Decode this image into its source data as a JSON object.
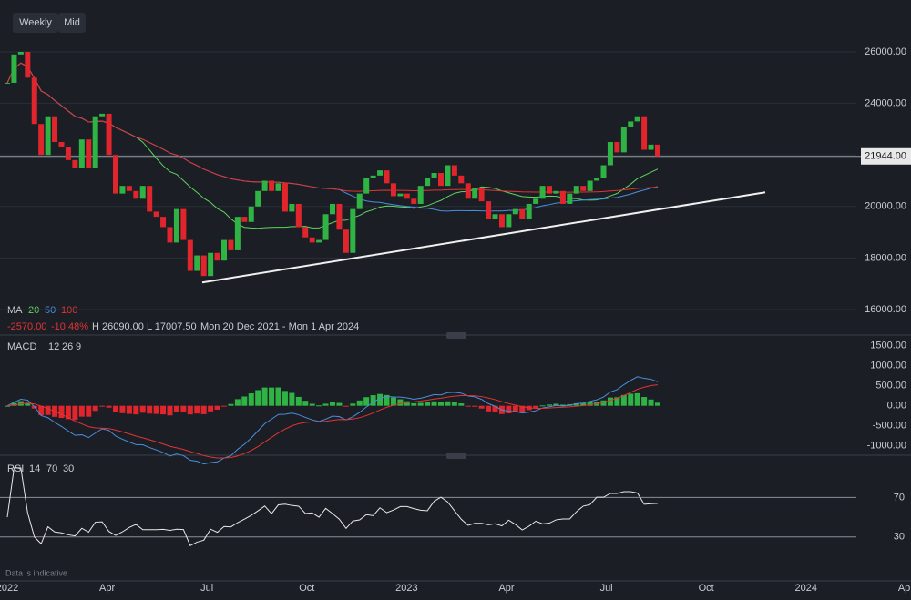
{
  "chart_data": {
    "type": "candlestick",
    "toolbar": [
      "Weekly",
      "Mid"
    ],
    "close": [
      24800,
      25900,
      26000,
      25000,
      23200,
      22000,
      23500,
      22500,
      22300,
      21800,
      21500,
      22600,
      21500,
      23500,
      23600,
      22000,
      20500,
      20800,
      20600,
      20300,
      20800,
      19800,
      19600,
      19200,
      18600,
      19900,
      18700,
      17500,
      18100,
      17300,
      18200,
      17900,
      18700,
      18300,
      19600,
      19400,
      20000,
      20600,
      21000,
      20600,
      20900,
      19800,
      20100,
      19200,
      18800,
      18600,
      18700,
      19700,
      20100,
      19100,
      18200,
      19900,
      20500,
      21100,
      21200,
      21400,
      20900,
      20400,
      20500,
      20300,
      20100,
      20800,
      21100,
      21300,
      20800,
      21600,
      21200,
      20900,
      20300,
      20700,
      20200,
      19500,
      19700,
      19200,
      19700,
      19900,
      19500,
      20100,
      20300,
      20800,
      20500,
      20600,
      20100,
      20500,
      20800,
      20600,
      21000,
      21100,
      21600,
      22500,
      22100,
      23100,
      23300,
      23500,
      22200,
      22400,
      21944
    ],
    "up_color": "#2fb344",
    "down_color": "#e0262c",
    "ylim": [
      15010,
      28014
    ],
    "yticks": [
      {
        "value": 16000,
        "label": "16000.00"
      },
      {
        "value": 18000,
        "label": "18000.00"
      },
      {
        "value": 20000,
        "label": "20000.00"
      },
      {
        "value": 22000,
        "label": "22000.00"
      },
      {
        "value": 24000,
        "label": "24000.00"
      },
      {
        "value": 26000,
        "label": "26000.00"
      }
    ],
    "last_price": {
      "value": 21944,
      "label": "21944.00"
    },
    "trendline": [
      17050,
      20550
    ],
    "ma": {
      "label": "MA",
      "periods": [
        20,
        50,
        100
      ],
      "colors": [
        "#5fd35f",
        "#4a8fdc",
        "#e23434"
      ]
    },
    "stats": [
      "-2570.00",
      "-10.48%",
      "H 26090.00",
      "L 17007.50",
      "Mon 20 Dec 2021 - Mon 1 Apr 2024"
    ],
    "macd": {
      "label": "MACD",
      "params": [
        12,
        26,
        9
      ],
      "colors": [
        "#4a8fdc",
        "#e23434"
      ],
      "ylim": [
        -1237,
        1724
      ],
      "yticks": [
        {
          "value": -1000,
          "label": "-1000.00"
        },
        {
          "value": -500,
          "label": "-500.00"
        },
        {
          "value": 0,
          "label": "0.00"
        },
        {
          "value": 500,
          "label": "500.00"
        },
        {
          "value": 1000,
          "label": "1000.00"
        },
        {
          "value": 1500,
          "label": "1500.00"
        }
      ]
    },
    "rsi": {
      "label": "RSI",
      "params": [
        14,
        70,
        30
      ],
      "ylim": [
        -14.5,
        108.2
      ],
      "yticks": [
        30,
        70
      ]
    },
    "xlabels": [
      "2022",
      "Apr",
      "Jul",
      "Oct",
      "2023",
      "Apr",
      "Jul",
      "Oct",
      "2024",
      "Apr"
    ],
    "footnote": "Data is indicative"
  }
}
